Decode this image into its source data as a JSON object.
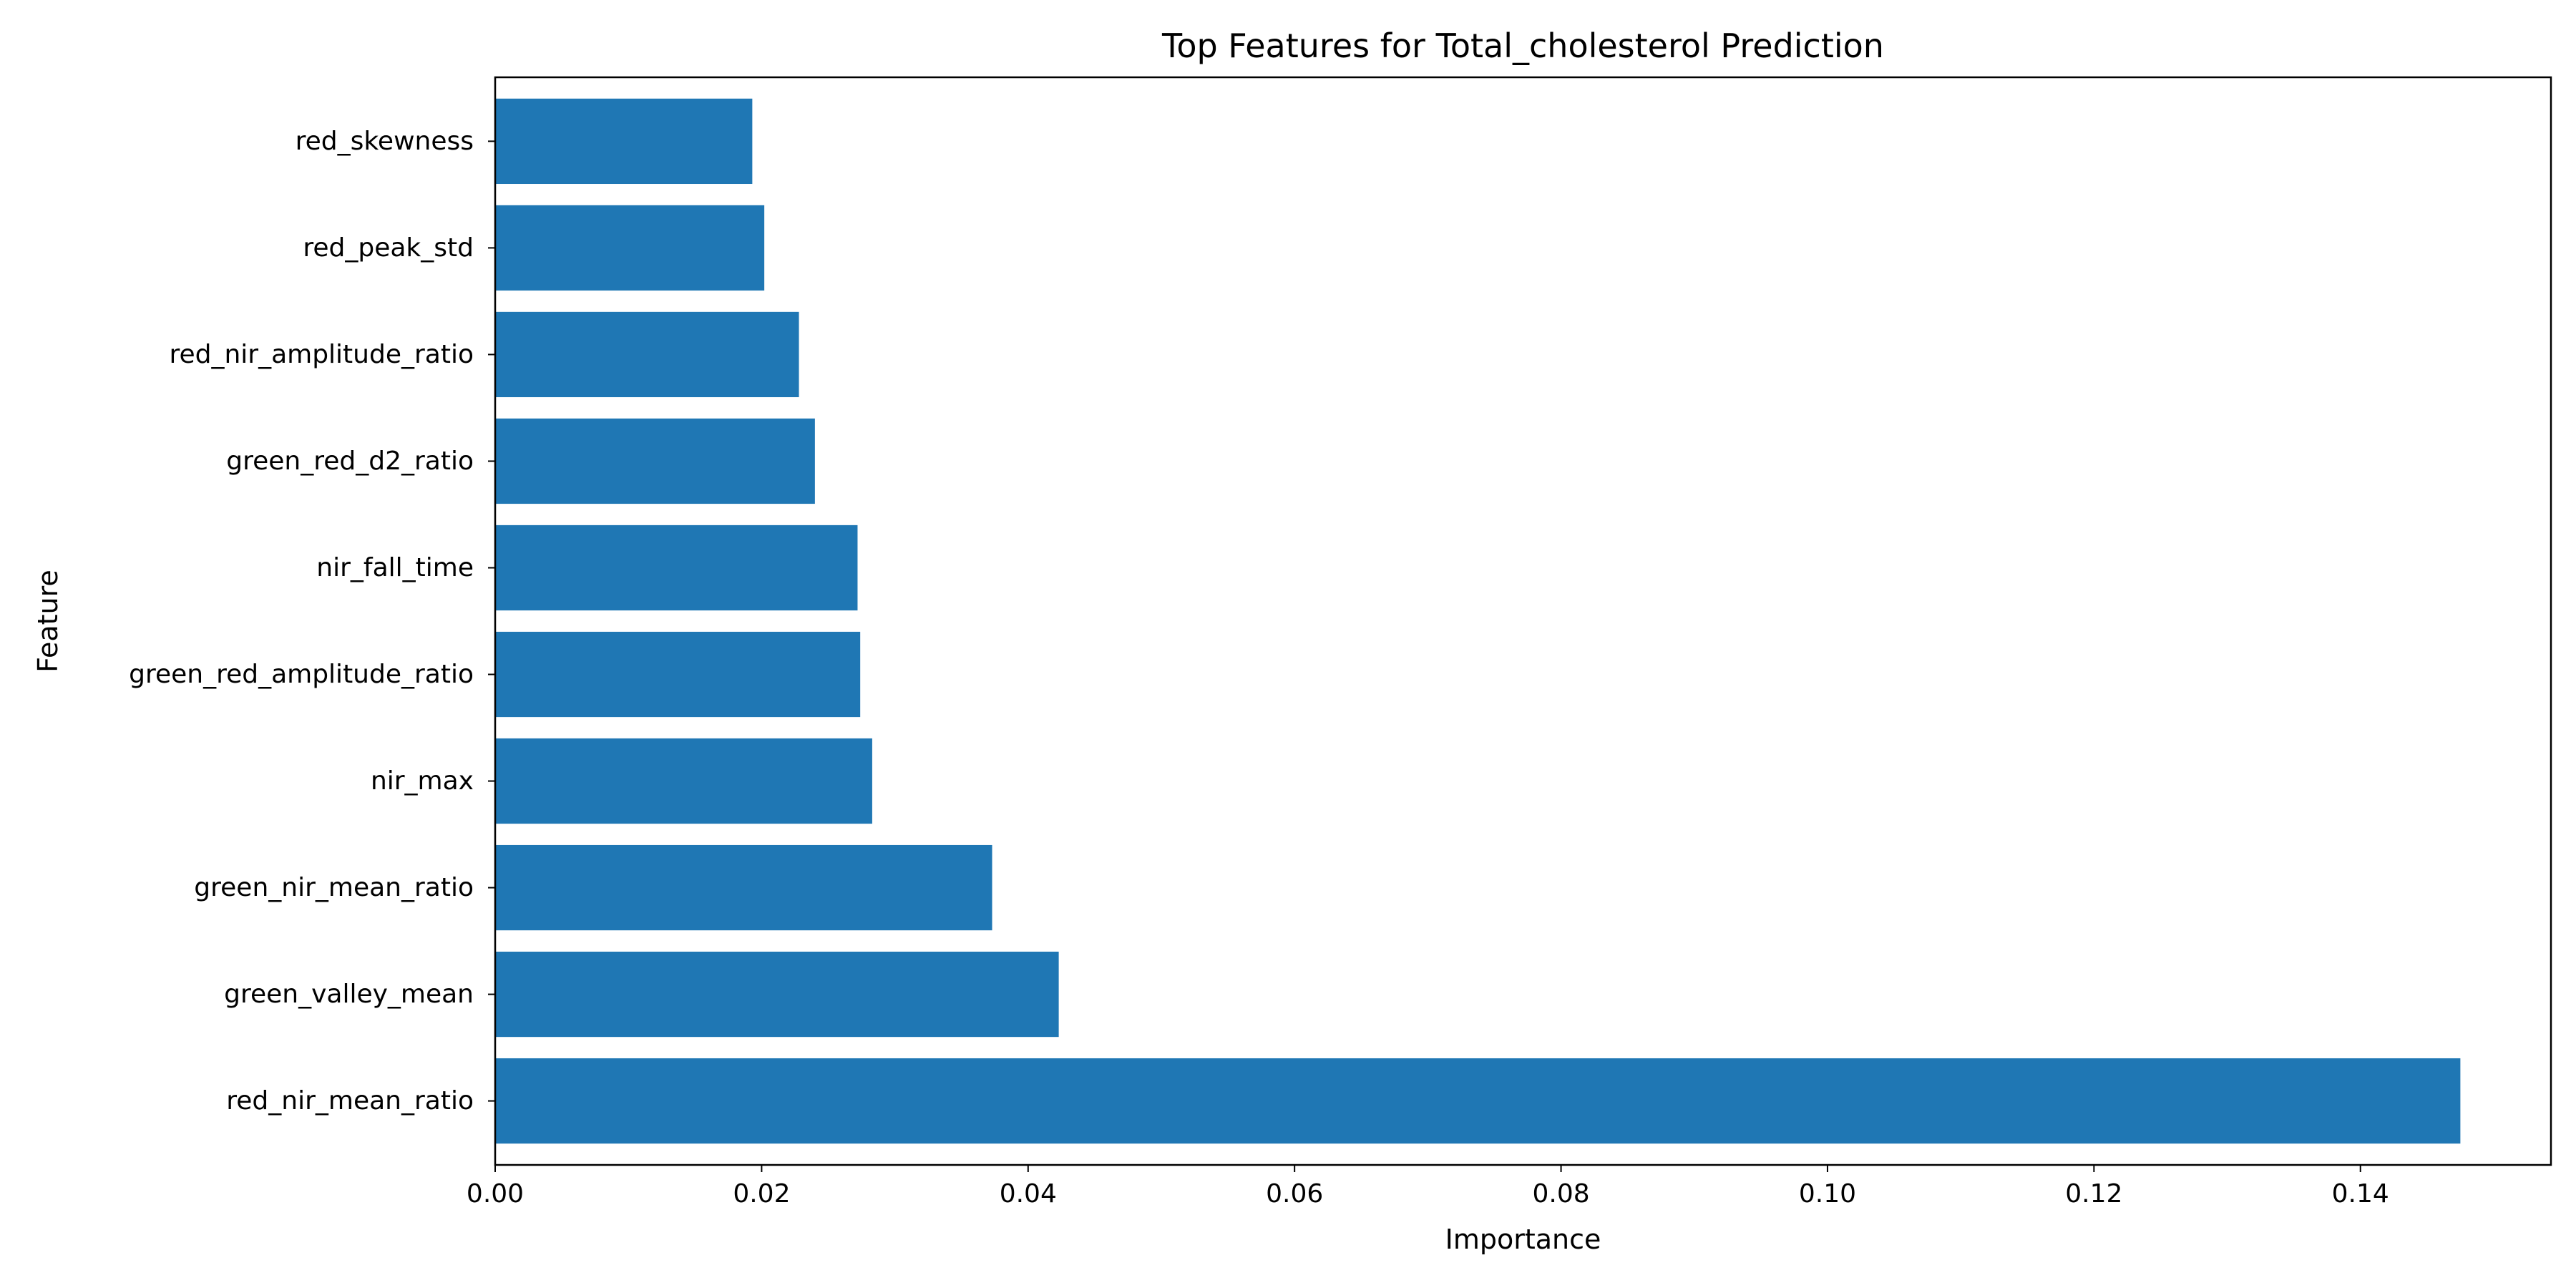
{
  "chart_data": {
    "type": "bar",
    "orientation": "horizontal",
    "title": "Top Features for Total_cholesterol Prediction",
    "xlabel": "Importance",
    "ylabel": "Feature",
    "categories": [
      "red_nir_mean_ratio",
      "green_valley_mean",
      "green_nir_mean_ratio",
      "nir_max",
      "green_red_amplitude_ratio",
      "nir_fall_time",
      "green_red_d2_ratio",
      "red_nir_amplitude_ratio",
      "red_peak_std",
      "red_skewness"
    ],
    "values": [
      0.1475,
      0.0423,
      0.0373,
      0.0283,
      0.0274,
      0.0272,
      0.024,
      0.0228,
      0.0202,
      0.0193
    ],
    "xlim": [
      0,
      0.1543
    ],
    "xticks": [
      0.0,
      0.02,
      0.04,
      0.06,
      0.08,
      0.1,
      0.12,
      0.14
    ],
    "xtick_labels": [
      "0.00",
      "0.02",
      "0.04",
      "0.06",
      "0.08",
      "0.10",
      "0.12",
      "0.14"
    ],
    "bar_color": "#1f77b4",
    "grid": false,
    "legend": "none"
  }
}
